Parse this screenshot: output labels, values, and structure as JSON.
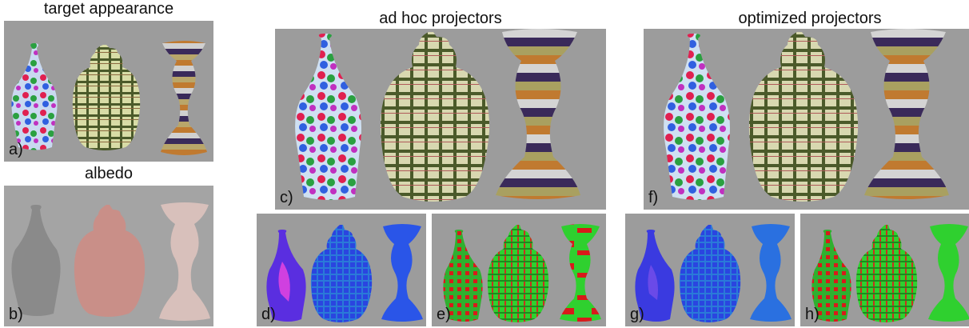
{
  "headings": {
    "target": "target appearance",
    "albedo": "albedo",
    "adhoc": "ad hoc projectors",
    "optimized": "optimized projectors"
  },
  "panels": {
    "a": "a)",
    "b": "b)",
    "c": "c)",
    "d": "d)",
    "e": "e)",
    "f": "f)",
    "g": "g)",
    "h": "h)"
  },
  "colors": {
    "background": "#9c9c9c",
    "albedo_vase1": "#8a8a8a",
    "albedo_vase2": "#c98f88",
    "albedo_vase3": "#d8c0bb",
    "d_map": "#2a45e0",
    "e_map": "#2fd02f",
    "error_red": "#d81a1a"
  }
}
